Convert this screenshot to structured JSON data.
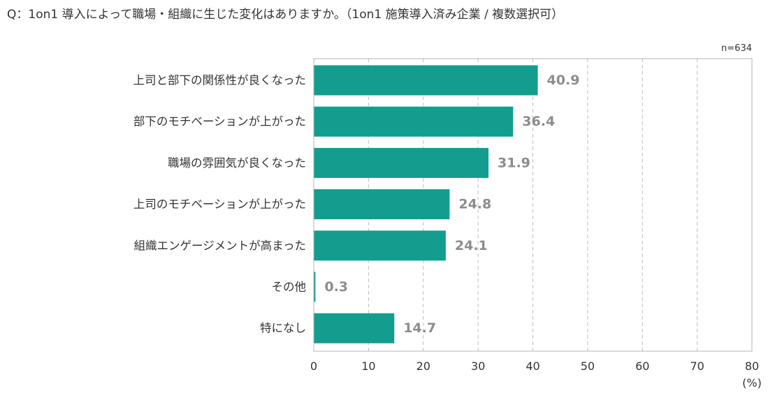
{
  "question": "Q：1on1 導入によって職場・組織に生じた変化はありますか。（1on1 施策導入済み企業 / 複数選択可）",
  "sample_note": "n=634",
  "chart_data": {
    "type": "bar",
    "orientation": "horizontal",
    "categories": [
      "上司と部下の関係性が良くなった",
      "部下のモチベーションが上がった",
      "職場の雰囲気が良くなった",
      "上司のモチベーションが上がった",
      "組織エンゲージメントが高まった",
      "その他",
      "特になし"
    ],
    "values": [
      40.9,
      36.4,
      31.9,
      24.8,
      24.1,
      0.3,
      14.7
    ],
    "value_labels": [
      "40.9",
      "36.4",
      "31.9",
      "24.8",
      "24.1",
      "0.3",
      "14.7"
    ],
    "xlim": [
      0,
      80
    ],
    "xticks": [
      "0",
      "10",
      "20",
      "30",
      "40",
      "50",
      "60",
      "70",
      "80"
    ],
    "xtick_values": [
      0,
      10,
      20,
      30,
      40,
      50,
      60,
      70,
      80
    ],
    "unit_label": "(%)",
    "bar_color": "#139d8f",
    "value_label_color": "#8c8c8c",
    "grid": "dashed vertical",
    "legend": "none"
  }
}
